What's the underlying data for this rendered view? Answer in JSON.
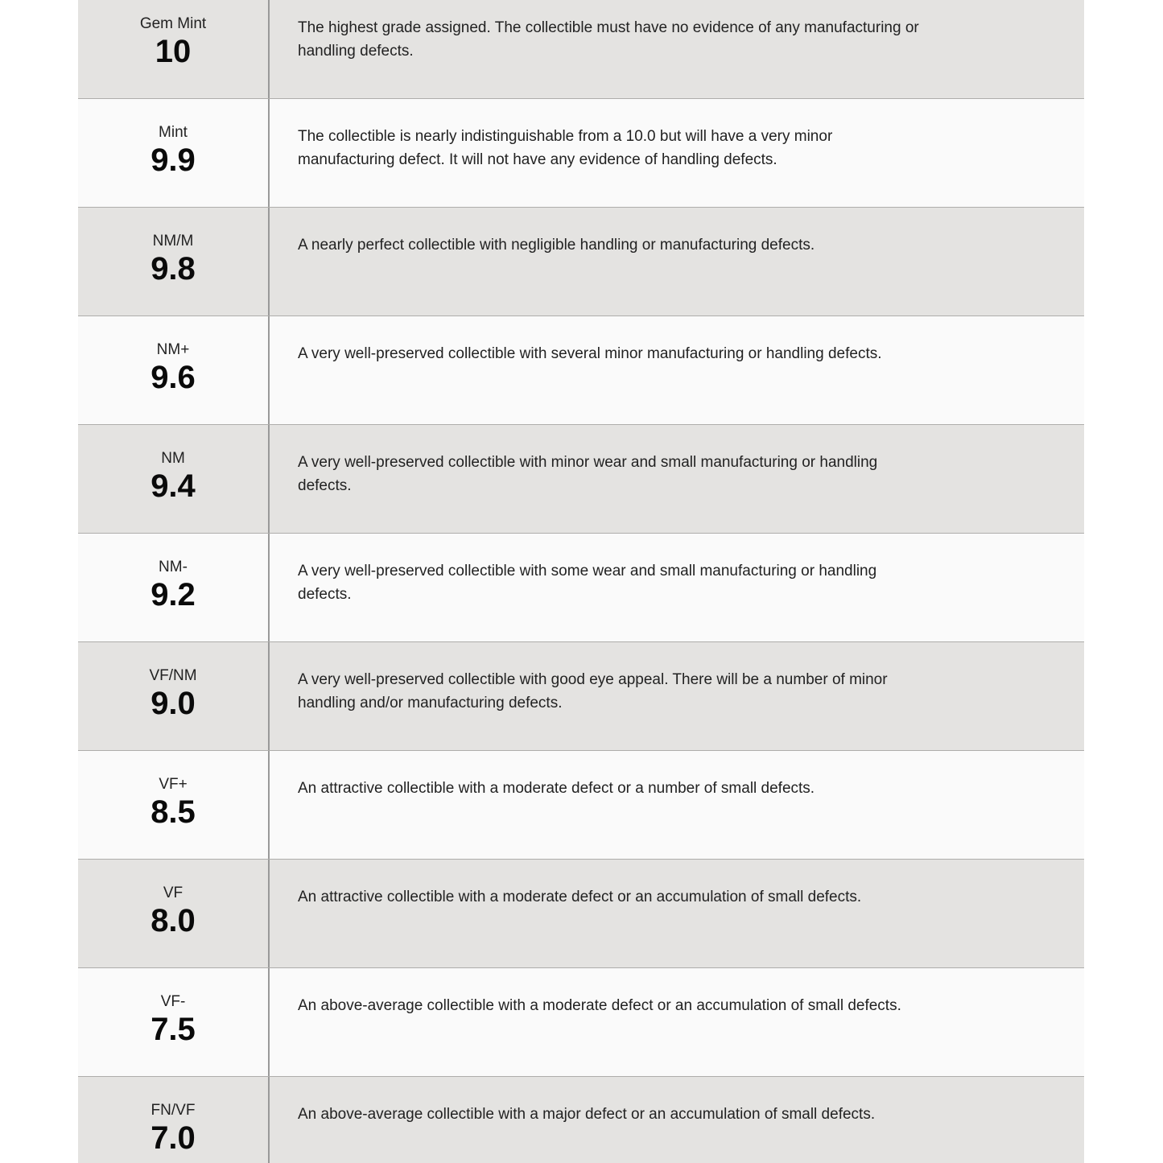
{
  "grading_scale": {
    "rows": [
      {
        "label": "Gem Mint",
        "grade": "10",
        "description": "The highest grade assigned. The collectible must have no evidence of any manufacturing or\nhandling defects."
      },
      {
        "label": "Mint",
        "grade": "9.9",
        "description": "The collectible is nearly indistinguishable from a 10.0 but will have a very minor\nmanufacturing defect. It will not have any evidence of handling defects."
      },
      {
        "label": "NM/M",
        "grade": "9.8",
        "description": "A nearly perfect collectible with negligible handling or manufacturing defects."
      },
      {
        "label": "NM+",
        "grade": "9.6",
        "description": "A very well-preserved collectible with several minor manufacturing or handling defects."
      },
      {
        "label": "NM",
        "grade": "9.4",
        "description": "A very well-preserved collectible with minor wear and small manufacturing or handling\ndefects."
      },
      {
        "label": "NM-",
        "grade": "9.2",
        "description": "A very well-preserved collectible with some wear and small manufacturing or handling\ndefects."
      },
      {
        "label": "VF/NM",
        "grade": "9.0",
        "description": "A very well-preserved collectible with good eye appeal. There will be a number of minor\nhandling and/or manufacturing defects."
      },
      {
        "label": "VF+",
        "grade": "8.5",
        "description": "An attractive collectible with a moderate defect or a number of small defects."
      },
      {
        "label": "VF",
        "grade": "8.0",
        "description": "An attractive collectible with a moderate defect or an accumulation of small defects."
      },
      {
        "label": "VF-",
        "grade": "7.5",
        "description": "An above-average collectible with a moderate defect or an accumulation of small defects."
      },
      {
        "label": "FN/VF",
        "grade": "7.0",
        "description": "An above-average collectible with a major defect or an accumulation of small defects."
      }
    ]
  },
  "colors": {
    "row_shade": "#e4e3e1",
    "row_light": "#fafafa",
    "row_border": "#aeadab",
    "column_divider": "#999999",
    "text_main": "#222222",
    "grade_number": "#0a0a0a"
  }
}
